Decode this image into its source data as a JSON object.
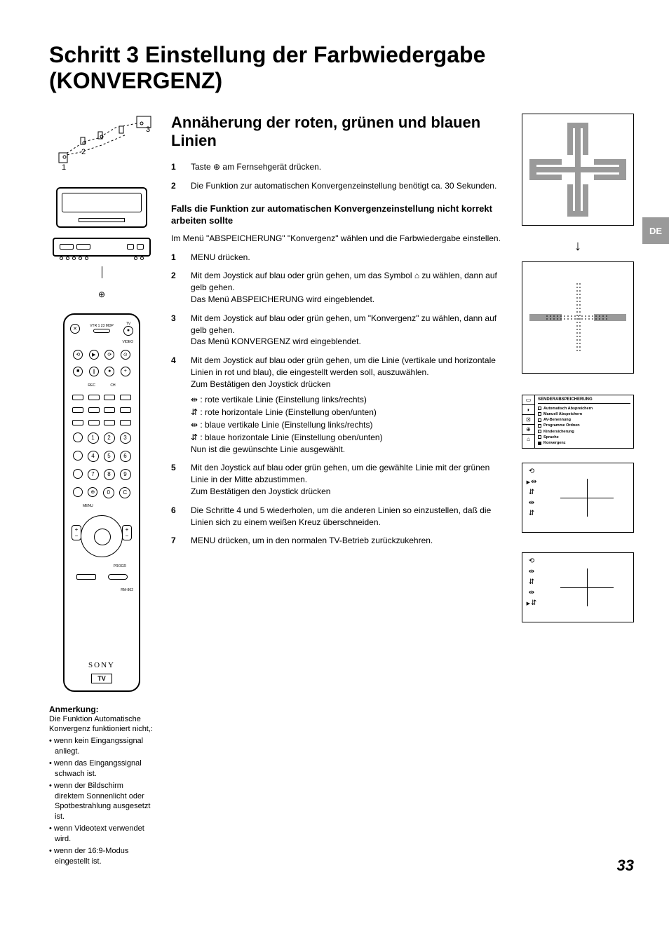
{
  "title": "Schritt 3  Einstellung der Farbwiedergabe (KONVERGENZ)",
  "tab": "DE",
  "pagenum": "33",
  "h2": "Annäherung der roten, grünen und blauen Linien",
  "steps_a": [
    {
      "n": "1",
      "t": "Taste ⊕ am Fernsehgerät drücken."
    },
    {
      "n": "2",
      "t": "Die Funktion zur automatischen Konvergenzeinstellung benötigt ca. 30 Sekunden."
    }
  ],
  "h3": "Falls die Funktion zur automatischen Konvergenzeinstellung nicht korrekt arbeiten sollte",
  "para_b": "Im Menü \"ABSPEICHERUNG\" \"Konvergenz\" wählen und die Farbwiedergabe einstellen.",
  "steps_b": [
    {
      "n": "1",
      "t": "MENU drücken."
    },
    {
      "n": "2",
      "t": "Mit dem Joystick auf blau oder grün gehen, um das Symbol ⌂ zu wählen, dann auf gelb gehen.\nDas Menü ABSPEICHERUNG wird eingeblendet."
    },
    {
      "n": "3",
      "t": "Mit dem Joystick auf blau oder grün gehen, um \"Konvergenz\" zu wählen, dann auf gelb gehen.\nDas Menü KONVERGENZ wird eingeblendet."
    },
    {
      "n": "4",
      "t": "Mit dem Joystick auf blau oder grün gehen, um die Linie (vertikale und horizontale Linien in rot und blau), die eingestellt werden soll, auszuwählen.\nZum Bestätigen den Joystick drücken",
      "sub": [
        "⇹ : rote vertikale Linie (Einstellung links/rechts)",
        "⇵ : rote horizontale Linie (Einstellung oben/unten)",
        "⇹ : blaue vertikale Linie (Einstellung links/rechts)",
        "⇵ : blaue horizontale Linie (Einstellung oben/unten)"
      ],
      "after": "Nun ist die gewünschte Linie ausgewählt."
    },
    {
      "n": "5",
      "t": "Mit den Joystick auf blau oder grün gehen, um die gewählte Linie mit der grünen Linie in der Mitte abzustimmen.\nZum Bestätigen den Joystick drücken"
    },
    {
      "n": "6",
      "t": "Die Schritte 4 und 5 wiederholen, um die anderen Linien so einzustellen, daß die Linien sich zu einem weißen Kreuz überschneiden."
    },
    {
      "n": "7",
      "t": "MENU drücken, um in den normalen TV-Betrieb zurückzukehren."
    }
  ],
  "note_title": "Anmerkung:",
  "note_body": "Die Funktion Automatische Konvergenz funktioniert nicht,:",
  "note_items": [
    "wenn kein Eingangssignal anliegt.",
    "wenn das Eingangssignal schwach ist.",
    "wenn der Bildschirm direktem Sonnenlicht oder Spotbestrahlung ausgesetzt ist.",
    "wenn Videotext verwendet wird.",
    "wenn der 16:9-Modus eingestellt ist."
  ],
  "remote_top": "VTR 1 23 MDP",
  "remote_tv": "TV",
  "remote_video": "VIDEO",
  "remote_rec": "REC",
  "remote_ch": "CH",
  "remote_menu": "MENU",
  "remote_progr": "PROGR",
  "remote_model": "RM-862",
  "remote_brand": "SONY",
  "remote_tvlabel": "TV",
  "menu_title": "SENDERABSPEICHERUNG",
  "menu_items": [
    "Automatisch Abspreichern",
    "Manuell Abspeichern",
    "AV-Benennung",
    "Programme Ordnen",
    "Kindersicherung",
    "Sprache",
    "Konvergenz"
  ],
  "diag_labels": {
    "l1": "1",
    "l2": "2",
    "l3": "3"
  },
  "colors": {
    "cross_r": "#b00000",
    "cross_g": "#008800",
    "cross_b": "#4a4ae0",
    "gray": "#9a9a9a"
  }
}
